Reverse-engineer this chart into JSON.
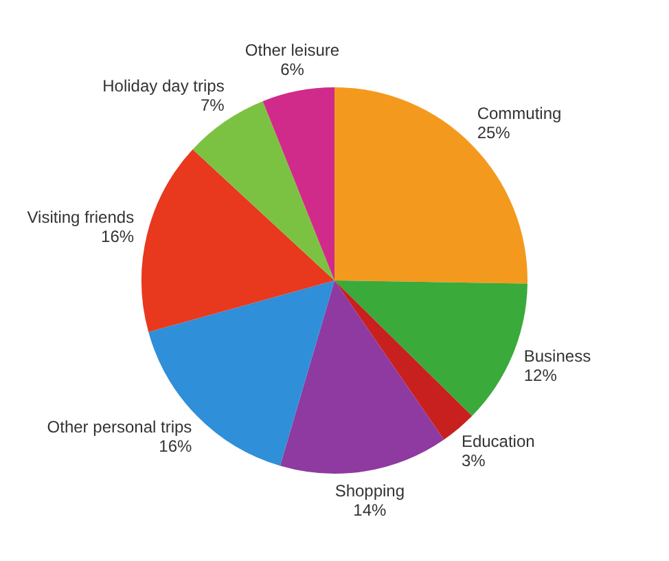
{
  "chart_data": {
    "type": "pie",
    "categories": [
      "Commuting",
      "Business",
      "Education",
      "Shopping",
      "Other personal trips",
      "Visiting friends",
      "Holiday day trips",
      "Other leisure"
    ],
    "values": [
      25,
      12,
      3,
      14,
      16,
      16,
      7,
      6
    ],
    "value_labels": [
      "25%",
      "12%",
      "3%",
      "14%",
      "16%",
      "16%",
      "7%",
      "6%"
    ],
    "colors": [
      "#f39a1e",
      "#3aaa3a",
      "#c8201e",
      "#8e3aa0",
      "#2f8fd8",
      "#e8381e",
      "#7cc242",
      "#d02a8a"
    ],
    "legend": false
  }
}
